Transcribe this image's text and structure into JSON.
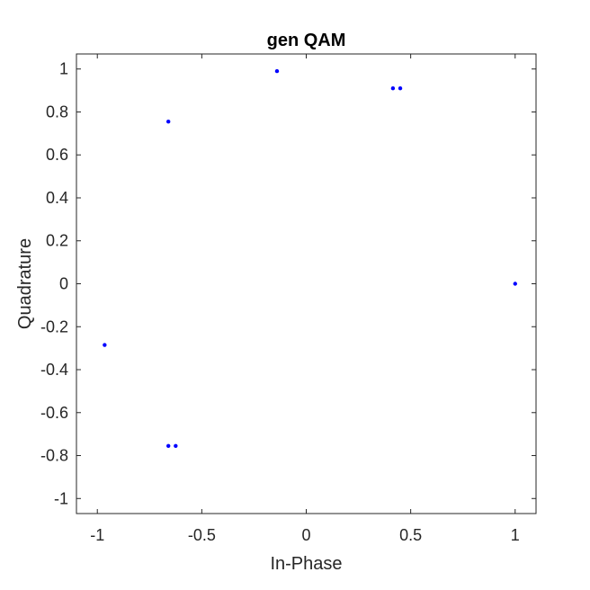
{
  "chart_data": {
    "type": "scatter",
    "title": "gen QAM",
    "xlabel": "In-Phase",
    "ylabel": "Quadrature",
    "xlim": [
      -1.1,
      1.1
    ],
    "ylim": [
      -1.07,
      1.07
    ],
    "xticks": [
      -1,
      -0.5,
      0,
      0.5,
      1
    ],
    "xtick_labels": [
      "-1",
      "-0.5",
      "0",
      "0.5",
      "1"
    ],
    "yticks": [
      -1,
      -0.8,
      -0.6,
      -0.4,
      -0.2,
      0,
      0.2,
      0.4,
      0.6,
      0.8,
      1
    ],
    "ytick_labels": [
      "-1",
      "-0.8",
      "-0.6",
      "-0.4",
      "-0.2",
      "0",
      "0.2",
      "0.4",
      "0.6",
      "0.8",
      "1"
    ],
    "grid": false,
    "marker_color": "#0000ff",
    "points": [
      {
        "x": -0.14,
        "y": 0.99
      },
      {
        "x": 0.415,
        "y": 0.91
      },
      {
        "x": 0.45,
        "y": 0.91
      },
      {
        "x": -0.66,
        "y": 0.755
      },
      {
        "x": 1.0,
        "y": 0.0
      },
      {
        "x": -0.965,
        "y": -0.285
      },
      {
        "x": -0.66,
        "y": -0.755
      },
      {
        "x": -0.625,
        "y": -0.755
      }
    ]
  }
}
